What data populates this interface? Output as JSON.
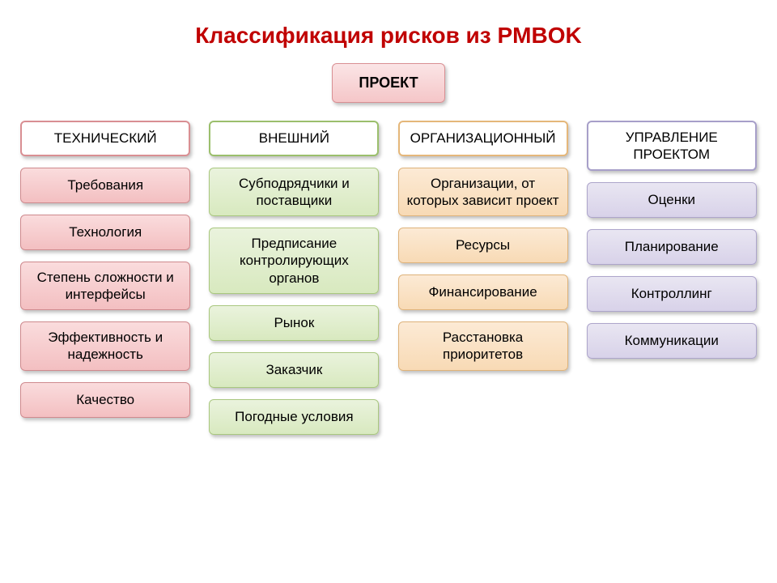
{
  "title": {
    "text": "Классификация рисков из PMBOK",
    "fontsize": 28,
    "color": "#c00000",
    "weight": "bold"
  },
  "root": {
    "label": "ПРОЕКТ",
    "fontsize": 18,
    "bg_top": "#fbe5e6",
    "bg_bottom": "#f5c6c8",
    "border": "#d98f93",
    "text_color": "#000000"
  },
  "item_fontsize": 17,
  "header_fontsize": 17,
  "columns": [
    {
      "header": "ТЕХНИЧЕСКИЙ",
      "header_border": "#d98f93",
      "item_bg_top": "#fadcdd",
      "item_bg_bottom": "#f3bfc1",
      "item_border": "#cf8a8e",
      "items": [
        "Требования",
        "Технология",
        "Степень сложности и интерфейсы",
        "Эффективность и надежность",
        "Качество"
      ]
    },
    {
      "header": "ВНЕШНИЙ",
      "header_border": "#9bbf6c",
      "item_bg_top": "#eaf3dd",
      "item_bg_bottom": "#d8e9bf",
      "item_border": "#a9c77f",
      "items": [
        "Субподрядчики и поставщики",
        "Предписание контролирующих органов",
        "Рынок",
        "Заказчик",
        "Погодные условия"
      ]
    },
    {
      "header": "ОРГАНИЗАЦИОННЫЙ",
      "header_border": "#e5b77a",
      "item_bg_top": "#fcead5",
      "item_bg_bottom": "#f8dab5",
      "item_border": "#dfb37a",
      "items": [
        "Организации, от которых зависит проект",
        "Ресурсы",
        "Финансирование",
        "Расстановка приоритетов"
      ]
    },
    {
      "header": "УПРАВЛЕНИЕ ПРОЕКТОМ",
      "header_border": "#a79fc9",
      "item_bg_top": "#e9e6f2",
      "item_bg_bottom": "#d8d2e9",
      "item_border": "#ada5cb",
      "items": [
        "Оценки",
        "Планирование",
        "Контроллинг",
        "Коммуникации"
      ]
    }
  ],
  "background_color": "#ffffff"
}
